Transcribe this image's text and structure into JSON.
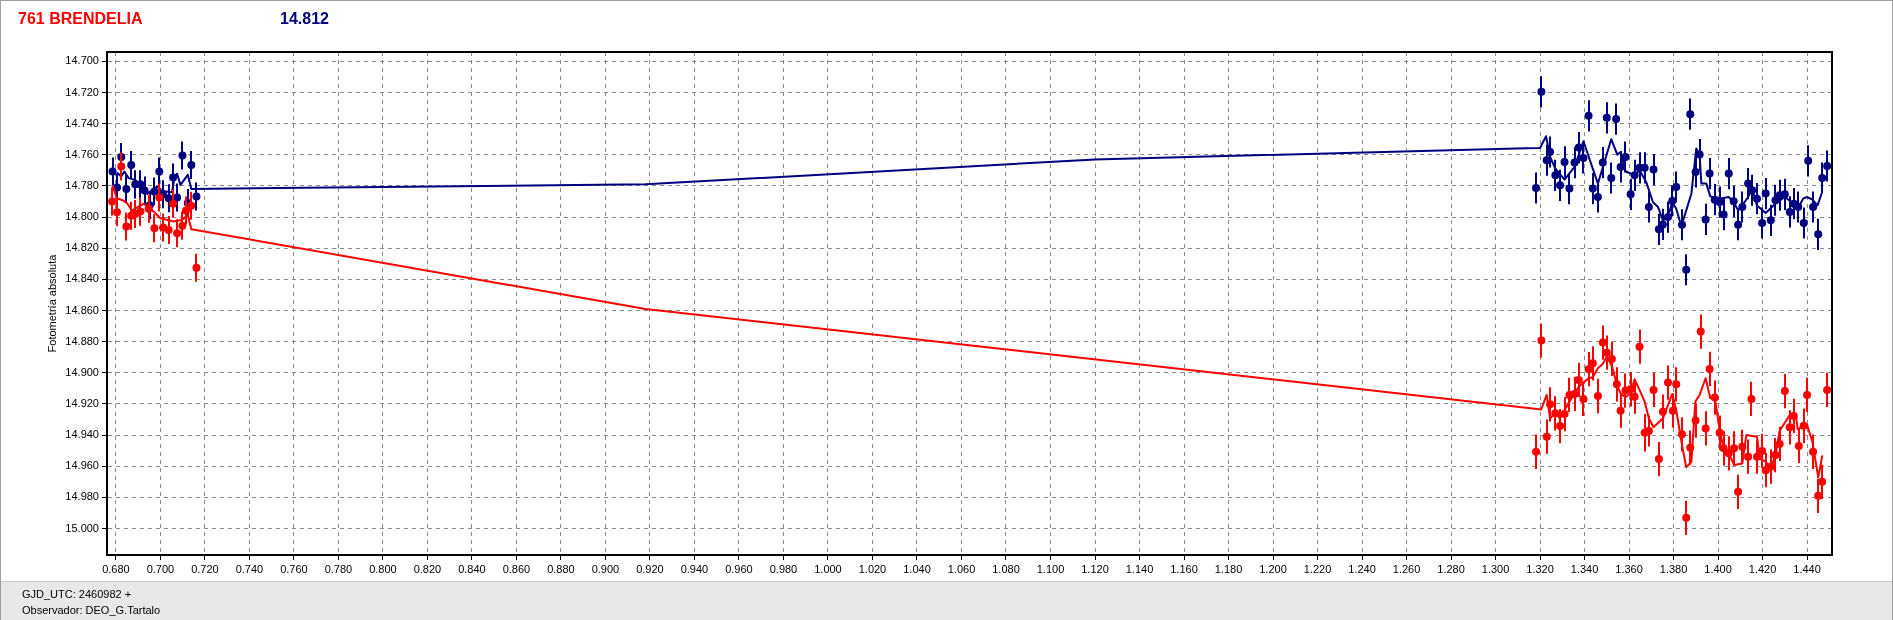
{
  "chart_data": {
    "type": "scatter",
    "title": "761 BRENDELIA",
    "subtitle": "14.812",
    "ylabel": "Fotometría absoluta",
    "annotations": [
      "GJD_UTC: 2460982 +",
      "Observador: DEO_G.Tartalo"
    ],
    "xlim": [
      0.676,
      1.4512
    ],
    "ylim": [
      15.017,
      14.694
    ],
    "xticks": [
      {
        "value": 0.68,
        "label": "0.680"
      },
      {
        "value": 0.7,
        "label": "0.700"
      },
      {
        "value": 0.72,
        "label": "0.720"
      },
      {
        "value": 0.74,
        "label": "0.740"
      },
      {
        "value": 0.76,
        "label": "0.760"
      },
      {
        "value": 0.78,
        "label": "0.780"
      },
      {
        "value": 0.8,
        "label": "0.800"
      },
      {
        "value": 0.82,
        "label": "0.820"
      },
      {
        "value": 0.84,
        "label": "0.840"
      },
      {
        "value": 0.86,
        "label": "0.860"
      },
      {
        "value": 0.88,
        "label": "0.880"
      },
      {
        "value": 0.9,
        "label": "0.900"
      },
      {
        "value": 0.92,
        "label": "0.920"
      },
      {
        "value": 0.94,
        "label": "0.940"
      },
      {
        "value": 0.96,
        "label": "0.960"
      },
      {
        "value": 0.98,
        "label": "0.980"
      },
      {
        "value": 1.0,
        "label": "1.000"
      },
      {
        "value": 1.02,
        "label": "1.020"
      },
      {
        "value": 1.04,
        "label": "1.040"
      },
      {
        "value": 1.06,
        "label": "1.060"
      },
      {
        "value": 1.08,
        "label": "1.080"
      },
      {
        "value": 1.1,
        "label": "1.100"
      },
      {
        "value": 1.12,
        "label": "1.120"
      },
      {
        "value": 1.14,
        "label": "1.140"
      },
      {
        "value": 1.16,
        "label": "1.160"
      },
      {
        "value": 1.18,
        "label": "1.180"
      },
      {
        "value": 1.2,
        "label": "1.200"
      },
      {
        "value": 1.22,
        "label": "1.220"
      },
      {
        "value": 1.24,
        "label": "1.240"
      },
      {
        "value": 1.26,
        "label": "1.260"
      },
      {
        "value": 1.28,
        "label": "1.280"
      },
      {
        "value": 1.3,
        "label": "1.300"
      },
      {
        "value": 1.32,
        "label": "1.320"
      },
      {
        "value": 1.34,
        "label": "1.340"
      },
      {
        "value": 1.36,
        "label": "1.360"
      },
      {
        "value": 1.38,
        "label": "1.380"
      },
      {
        "value": 1.4,
        "label": "1.400"
      },
      {
        "value": 1.42,
        "label": "1.420"
      },
      {
        "value": 1.44,
        "label": "1.440"
      }
    ],
    "yticks": [
      {
        "value": 14.7,
        "label": "14.700"
      },
      {
        "value": 14.72,
        "label": "14.720"
      },
      {
        "value": 14.74,
        "label": "14.740"
      },
      {
        "value": 14.76,
        "label": "14.760"
      },
      {
        "value": 14.78,
        "label": "14.780"
      },
      {
        "value": 14.8,
        "label": "14.800"
      },
      {
        "value": 14.82,
        "label": "14.820"
      },
      {
        "value": 14.84,
        "label": "14.840"
      },
      {
        "value": 14.86,
        "label": "14.860"
      },
      {
        "value": 14.88,
        "label": "14.880"
      },
      {
        "value": 14.9,
        "label": "14.900"
      },
      {
        "value": 14.92,
        "label": "14.920"
      },
      {
        "value": 14.94,
        "label": "14.940"
      },
      {
        "value": 14.96,
        "label": "14.960"
      },
      {
        "value": 14.98,
        "label": "14.980"
      },
      {
        "value": 15.0,
        "label": "15.000"
      }
    ],
    "grid": true,
    "marker": "circle",
    "series": [
      {
        "color": "#ff0000",
        "x": [
          0.6783,
          0.6805,
          0.6824,
          0.6847,
          0.6869,
          0.6887,
          0.691,
          0.6947,
          0.6973,
          0.6995,
          0.7012,
          0.7037,
          0.7057,
          0.7075,
          0.7099,
          0.7115,
          0.7139,
          0.7162,
          1.3182,
          1.3206,
          1.323,
          1.3245,
          1.3269,
          1.329,
          1.331,
          1.3332,
          1.3355,
          1.3374,
          1.3395,
          1.3418,
          1.3437,
          1.346,
          1.3482,
          1.35,
          1.3523,
          1.3545,
          1.3562,
          1.3584,
          1.3607,
          1.3625,
          1.3647,
          1.367,
          1.3689,
          1.371,
          1.3734,
          1.3752,
          1.3775,
          1.3797,
          1.3812,
          1.3838,
          1.3857,
          1.3875,
          1.3899,
          1.3922,
          1.3944,
          1.3962,
          1.3985,
          1.4007,
          1.4025,
          1.4048,
          1.4072,
          1.409,
          1.4109,
          1.4135,
          1.415,
          1.4175,
          1.4198,
          1.4214,
          1.4237,
          1.4258,
          1.4277,
          1.43,
          1.4322,
          1.434,
          1.4363,
          1.4385,
          1.44,
          1.4427,
          1.445,
          1.4468,
          1.449
        ],
        "values": [
          14.79,
          14.7969,
          14.7675,
          14.806,
          14.7992,
          14.798,
          14.7965,
          14.7947,
          14.8072,
          14.7875,
          14.8067,
          14.8083,
          14.7915,
          14.8104,
          14.8055,
          14.7958,
          14.7928,
          14.8325,
          14.9507,
          14.8793,
          14.941,
          14.9202,
          14.926,
          14.9342,
          14.9265,
          14.9142,
          14.9136,
          14.9046,
          14.9168,
          14.8977,
          14.8939,
          14.9149,
          14.8806,
          14.8871,
          14.8911,
          14.9074,
          14.9243,
          14.9114,
          14.9106,
          14.9153,
          14.8832,
          14.9385,
          14.9374,
          14.911,
          14.9554,
          14.925,
          14.9063,
          14.9243,
          14.9074,
          14.9395,
          14.9931,
          14.9481,
          14.9307,
          14.8735,
          14.9357,
          14.8975,
          14.9159,
          14.9385,
          14.9485,
          14.9517,
          14.9485,
          14.9764,
          14.9475,
          14.9539,
          14.9168,
          14.9539,
          14.9502,
          14.9625,
          14.9603,
          14.9528,
          14.9457,
          14.9117,
          14.935,
          14.9277,
          14.947,
          14.934,
          14.9142,
          14.9507,
          14.979,
          14.97,
          14.911
        ],
        "errors": [
          0.009,
          0.009,
          0.009,
          0.009,
          0.009,
          0.009,
          0.009,
          0.009,
          0.009,
          0.009,
          0.009,
          0.009,
          0.009,
          0.009,
          0.009,
          0.009,
          0.009,
          0.009,
          0.011,
          0.011,
          0.011,
          0.011,
          0.011,
          0.011,
          0.011,
          0.011,
          0.011,
          0.011,
          0.011,
          0.011,
          0.011,
          0.011,
          0.011,
          0.011,
          0.011,
          0.011,
          0.011,
          0.011,
          0.011,
          0.011,
          0.011,
          0.012,
          0.01,
          0.011,
          0.011,
          0.011,
          0.011,
          0.011,
          0.011,
          0.011,
          0.011,
          0.011,
          0.011,
          0.011,
          0.011,
          0.011,
          0.011,
          0.011,
          0.011,
          0.011,
          0.011,
          0.011,
          0.011,
          0.011,
          0.011,
          0.011,
          0.011,
          0.011,
          0.011,
          0.011,
          0.011,
          0.011,
          0.011,
          0.011,
          0.011,
          0.011,
          0.011,
          0.011,
          0.011,
          0.011,
          0.011
        ]
      },
      {
        "type": "line",
        "marker": "none",
        "color": "#ff0000",
        "x": [
          0.6786,
          0.6805,
          0.6827,
          0.685,
          0.6872,
          0.6902,
          0.6925,
          0.697,
          0.7,
          0.706,
          0.7097,
          0.7123,
          0.7139,
          0.918,
          1.3205,
          1.323,
          1.3245,
          1.3269,
          1.329,
          1.3332,
          1.3374,
          1.3418,
          1.3437,
          1.346,
          1.3482,
          1.35,
          1.3524,
          1.3545,
          1.3562,
          1.3584,
          1.3607,
          1.3625,
          1.3647,
          1.367,
          1.3689,
          1.371,
          1.3752,
          1.3775,
          1.3794,
          1.3812,
          1.3838,
          1.3857,
          1.388,
          1.3898,
          1.3917,
          1.3944,
          1.3965,
          1.3985,
          1.4007,
          1.4025,
          1.4048,
          1.4072,
          1.4109,
          1.4127,
          1.4175,
          1.4187,
          1.4214,
          1.4237,
          1.4258,
          1.4277,
          1.4325,
          1.4349,
          1.4358,
          1.4382,
          1.44,
          1.4424,
          1.445,
          1.4468
        ],
        "values": [
          14.7804,
          14.7879,
          14.789,
          14.7911,
          14.7958,
          14.7932,
          14.7915,
          14.7965,
          14.8008,
          14.8029,
          14.8018,
          14.7986,
          14.8078,
          14.859,
          14.9235,
          14.9142,
          14.9292,
          14.926,
          14.9292,
          14.9185,
          14.9089,
          14.9035,
          14.9029,
          14.8971,
          14.8943,
          14.8896,
          14.896,
          14.9078,
          14.9132,
          14.9157,
          14.9132,
          14.9042,
          14.911,
          14.9185,
          14.9292,
          14.935,
          14.9292,
          14.9207,
          14.9136,
          14.9239,
          14.9464,
          14.9607,
          14.9571,
          14.9185,
          14.9142,
          14.9035,
          14.9164,
          14.9157,
          14.9367,
          14.9485,
          14.9517,
          14.9592,
          14.9582,
          14.94,
          14.941,
          14.955,
          14.9571,
          14.9614,
          14.9528,
          14.9372,
          14.9265,
          14.9265,
          14.9363,
          14.9342,
          14.9335,
          14.9442,
          14.9672,
          14.9535
        ]
      },
      {
        "color": "#000080",
        "x": [
          0.6785,
          0.6805,
          0.6824,
          0.6847,
          0.6869,
          0.6887,
          0.691,
          0.6929,
          0.6952,
          0.6973,
          0.6995,
          0.7012,
          0.7037,
          0.7057,
          0.7075,
          0.7099,
          0.7123,
          0.7139,
          0.7162,
          1.3182,
          1.3206,
          1.323,
          1.3245,
          1.3269,
          1.329,
          1.331,
          1.3332,
          1.3355,
          1.3374,
          1.3395,
          1.3418,
          1.3437,
          1.346,
          1.3482,
          1.35,
          1.352,
          1.3542,
          1.3562,
          1.3584,
          1.3607,
          1.3625,
          1.3647,
          1.367,
          1.3689,
          1.371,
          1.3734,
          1.3752,
          1.3775,
          1.3794,
          1.3812,
          1.3838,
          1.3857,
          1.3875,
          1.3899,
          1.3917,
          1.3944,
          1.3962,
          1.3985,
          1.4007,
          1.4025,
          1.4048,
          1.407,
          1.409,
          1.4109,
          1.4135,
          1.4153,
          1.4175,
          1.4198,
          1.4214,
          1.4237,
          1.4258,
          1.4277,
          1.43,
          1.4322,
          1.434,
          1.436,
          1.4385,
          1.4405,
          1.4427,
          1.445,
          1.4468,
          1.449
        ],
        "values": [
          14.7707,
          14.781,
          14.7615,
          14.782,
          14.7665,
          14.779,
          14.779,
          14.783,
          14.7924,
          14.7836,
          14.7707,
          14.7853,
          14.7879,
          14.7746,
          14.7875,
          14.7604,
          14.791,
          14.7665,
          14.7868,
          14.7813,
          14.7196,
          14.7635,
          14.7582,
          14.7732,
          14.7796,
          14.7646,
          14.7817,
          14.765,
          14.7554,
          14.762,
          14.735,
          14.7817,
          14.7871,
          14.765,
          14.7363,
          14.7749,
          14.7371,
          14.7678,
          14.7614,
          14.7854,
          14.7732,
          14.7684,
          14.7684,
          14.7935,
          14.7695,
          14.8079,
          14.8047,
          14.8,
          14.7897,
          14.7807,
          14.8049,
          14.8338,
          14.7339,
          14.771,
          14.7599,
          14.8015,
          14.7721,
          14.7888,
          14.7903,
          14.7984,
          14.7721,
          14.7899,
          14.8049,
          14.7935,
          14.7785,
          14.7828,
          14.7882,
          14.8038,
          14.7849,
          14.8021,
          14.7892,
          14.786,
          14.7854,
          14.7967,
          14.7914,
          14.7935,
          14.8038,
          14.7639,
          14.7935,
          14.8111,
          14.7749,
          14.7672
        ],
        "errors": [
          0.009,
          0.009,
          0.009,
          0.009,
          0.009,
          0.009,
          0.009,
          0.009,
          0.009,
          0.009,
          0.009,
          0.009,
          0.009,
          0.009,
          0.009,
          0.009,
          0.009,
          0.009,
          0.009,
          0.01,
          0.01,
          0.01,
          0.01,
          0.01,
          0.01,
          0.01,
          0.01,
          0.01,
          0.01,
          0.01,
          0.01,
          0.01,
          0.01,
          0.01,
          0.01,
          0.01,
          0.01,
          0.01,
          0.01,
          0.01,
          0.01,
          0.01,
          0.01,
          0.01,
          0.01,
          0.01,
          0.01,
          0.01,
          0.01,
          0.01,
          0.01,
          0.01,
          0.01,
          0.01,
          0.01,
          0.01,
          0.01,
          0.01,
          0.01,
          0.01,
          0.01,
          0.01,
          0.01,
          0.01,
          0.01,
          0.01,
          0.01,
          0.01,
          0.01,
          0.01,
          0.01,
          0.01,
          0.01,
          0.01,
          0.01,
          0.01,
          0.01,
          0.01,
          0.01,
          0.01,
          0.01,
          0.01
        ]
      },
      {
        "type": "line",
        "marker": "none",
        "color": "#000080",
        "x": [
          0.6808,
          0.6824,
          0.6838,
          0.6857,
          0.6887,
          0.691,
          0.694,
          0.6985,
          0.7007,
          0.7052,
          0.7064,
          0.7075,
          0.709,
          0.7123,
          0.7139,
          0.918,
          1.12,
          1.32,
          1.3227,
          1.3245,
          1.3269,
          1.331,
          1.3355,
          1.3395,
          1.346,
          1.352,
          1.3547,
          1.3562,
          1.3584,
          1.3625,
          1.3647,
          1.3677,
          1.3707,
          1.373,
          1.3752,
          1.3775,
          1.3794,
          1.3812,
          1.3835,
          1.3857,
          1.388,
          1.3902,
          1.3917,
          1.3925,
          1.3947,
          1.3965,
          1.4007,
          1.4048,
          1.407,
          1.409,
          1.4109,
          1.4135,
          1.4153,
          1.4175,
          1.4214,
          1.4258,
          1.43,
          1.434,
          1.436,
          1.4382,
          1.44,
          1.4424,
          1.4447,
          1.4465
        ],
        "values": [
          14.7718,
          14.774,
          14.7707,
          14.775,
          14.7761,
          14.7804,
          14.7851,
          14.7804,
          14.7832,
          14.784,
          14.774,
          14.7722,
          14.7793,
          14.7729,
          14.7819,
          14.779,
          14.763,
          14.7556,
          14.7481,
          14.7614,
          14.7689,
          14.7759,
          14.7678,
          14.7513,
          14.7785,
          14.75,
          14.7599,
          14.7582,
          14.7706,
          14.7732,
          14.7699,
          14.7774,
          14.7903,
          14.7935,
          14.8021,
          14.8,
          14.7903,
          14.7946,
          14.8057,
          14.7957,
          14.785,
          14.756,
          14.7603,
          14.7785,
          14.7785,
          14.7867,
          14.7882,
          14.7871,
          14.7903,
          14.7957,
          14.7925,
          14.7871,
          14.7817,
          14.7925,
          14.7974,
          14.7914,
          14.7871,
          14.7914,
          14.7942,
          14.7882,
          14.7871,
          14.7888,
          14.7925,
          14.785
        ]
      }
    ]
  }
}
